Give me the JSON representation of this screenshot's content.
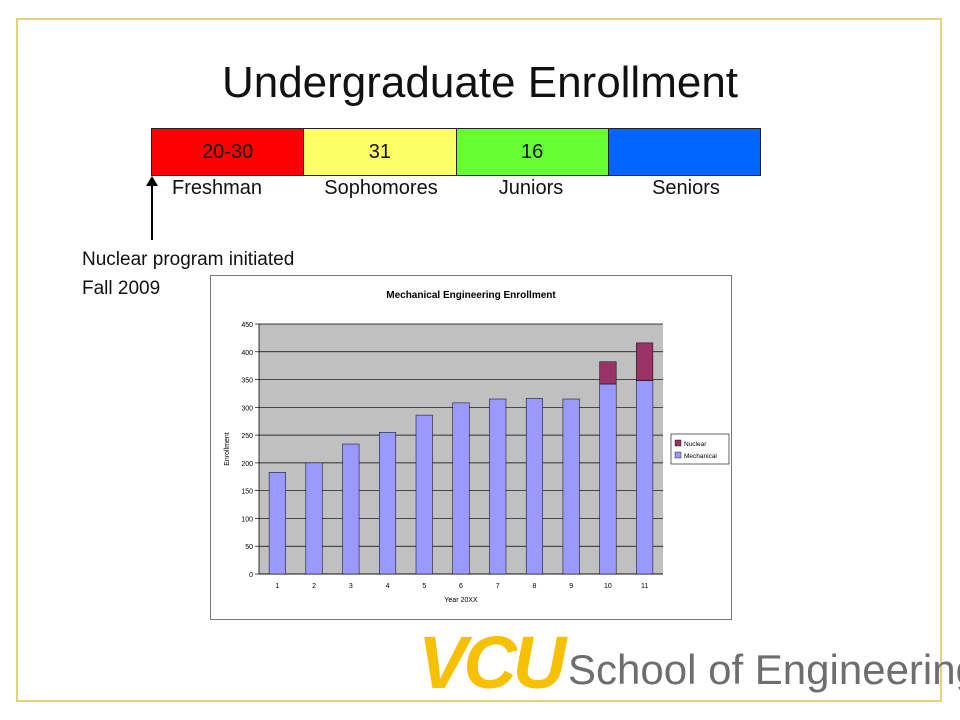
{
  "slide": {
    "title": "Undergraduate Enrollment",
    "note_line1": "Nuclear program initiated",
    "note_line2": "Fall 2009"
  },
  "class_bar": {
    "segments": [
      {
        "value": "20-30",
        "label": "Freshman",
        "color": "#ff0000"
      },
      {
        "value": "31",
        "label": "Sophomores",
        "color": "#ffff66"
      },
      {
        "value": "16",
        "label": "Juniors",
        "color": "#66ff33"
      },
      {
        "value": "",
        "label": "Seniors",
        "color": "#0066ff"
      }
    ]
  },
  "logo": {
    "mark": "VCU",
    "text": "School of Engineering"
  },
  "chart_data": {
    "type": "bar",
    "stacked": true,
    "title": "Mechanical Engineering Enrollment",
    "xlabel": "Year 20XX",
    "ylabel": "Enrollment",
    "ylim": [
      0,
      450
    ],
    "yticks": [
      0,
      50,
      100,
      150,
      200,
      250,
      300,
      350,
      400,
      450
    ],
    "categories": [
      "1",
      "2",
      "3",
      "4",
      "5",
      "6",
      "7",
      "8",
      "9",
      "10",
      "11"
    ],
    "series": [
      {
        "name": "Mechanical",
        "color": "#9999ff",
        "values": [
          183,
          200,
          234,
          255,
          286,
          308,
          315,
          316,
          315,
          342,
          348
        ]
      },
      {
        "name": "Nuclear",
        "color": "#993366",
        "values": [
          0,
          0,
          0,
          0,
          0,
          0,
          0,
          0,
          0,
          40,
          68
        ]
      }
    ],
    "legend": [
      "Nuclear",
      "Mechanical"
    ],
    "legend_position": "right",
    "plot_background": "#c0c0c0",
    "grid": true
  }
}
